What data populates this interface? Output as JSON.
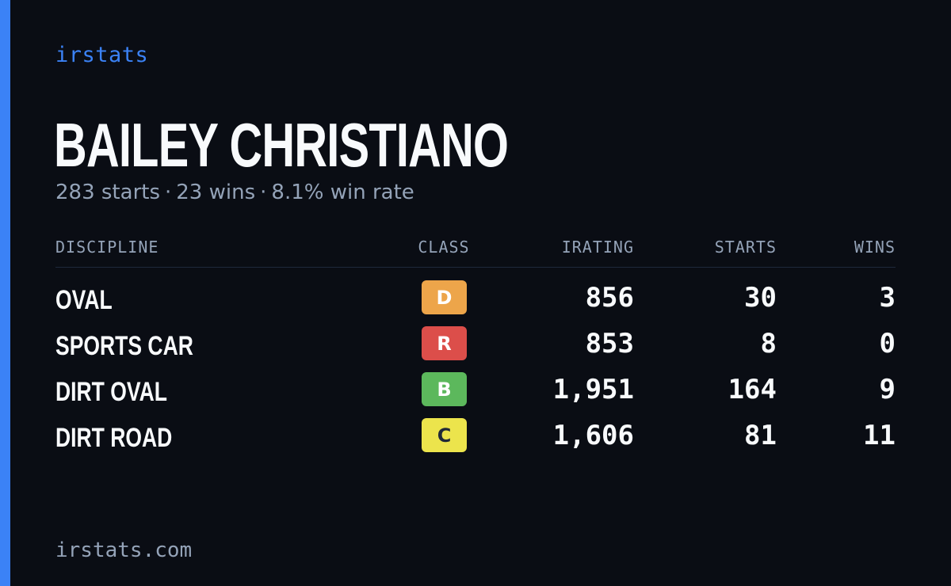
{
  "brand": {
    "name": "irstats"
  },
  "driver": {
    "name": "BAILEY CHRISTIANO",
    "summary": {
      "starts": "283 starts",
      "wins": "23 wins",
      "win_rate": "8.1% win rate",
      "separator": "·"
    }
  },
  "table": {
    "headers": {
      "discipline": "DISCIPLINE",
      "class": "CLASS",
      "irating": "IRATING",
      "starts": "STARTS",
      "wins": "WINS"
    },
    "rows": [
      {
        "discipline": "OVAL",
        "class": "D",
        "class_color": "#eda54a",
        "class_text_color": "#ffffff",
        "irating": "856",
        "starts": "30",
        "wins": "3"
      },
      {
        "discipline": "SPORTS CAR",
        "class": "R",
        "class_color": "#dc4e4a",
        "class_text_color": "#ffffff",
        "irating": "853",
        "starts": "8",
        "wins": "0"
      },
      {
        "discipline": "DIRT OVAL",
        "class": "B",
        "class_color": "#5cb85c",
        "class_text_color": "#ffffff",
        "irating": "1,951",
        "starts": "164",
        "wins": "9"
      },
      {
        "discipline": "DIRT ROAD",
        "class": "C",
        "class_color": "#ece44c",
        "class_text_color": "#1f2937",
        "irating": "1,606",
        "starts": "81",
        "wins": "11"
      }
    ]
  },
  "footer": {
    "url": "irstats.com"
  },
  "colors": {
    "accent": "#3b82f6",
    "background": "#0a0d14",
    "muted_text": "#94a3b8",
    "primary_text": "#f8fafc"
  }
}
